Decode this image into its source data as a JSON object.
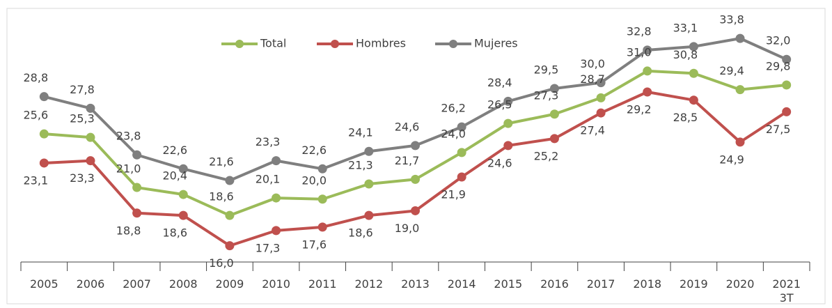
{
  "chart_data": {
    "type": "line",
    "categories": [
      "2005",
      "2006",
      "2007",
      "2008",
      "2009",
      "2010",
      "2011",
      "2012",
      "2013",
      "2014",
      "2015",
      "2016",
      "2017",
      "2018",
      "2019",
      "2020",
      "2021\n3T"
    ],
    "series": [
      {
        "name": "Total",
        "color": "#9bbb59",
        "values": [
          25.6,
          25.3,
          21.0,
          20.4,
          18.6,
          20.1,
          20.0,
          21.3,
          21.7,
          24.0,
          26.5,
          27.3,
          28.7,
          31.0,
          30.8,
          29.4,
          29.8
        ],
        "value_labels": [
          "25,6",
          "25,3",
          "21,0",
          "20,4",
          "18,6",
          "20,1",
          "20,0",
          "21,3",
          "21,7",
          "24,0",
          "26,5",
          "27,3",
          "28,7",
          "31,0",
          "30,8",
          "29,4",
          "29,8"
        ]
      },
      {
        "name": "Hombres",
        "color": "#c0504d",
        "values": [
          23.1,
          23.3,
          18.8,
          18.6,
          16.0,
          17.3,
          17.6,
          18.6,
          19.0,
          21.9,
          24.6,
          25.2,
          27.4,
          29.2,
          28.5,
          24.9,
          27.5
        ],
        "value_labels": [
          "23,1",
          "23,3",
          "18,8",
          "18,6",
          "16,0",
          "17,3",
          "17,6",
          "18,6",
          "19,0",
          "21,9",
          "24,6",
          "25,2",
          "27,4",
          "29,2",
          "28,5",
          "24,9",
          "27,5"
        ]
      },
      {
        "name": "Mujeres",
        "color": "#7f7f7f",
        "values": [
          28.8,
          27.8,
          23.8,
          22.6,
          21.6,
          23.3,
          22.6,
          24.1,
          24.6,
          26.2,
          28.4,
          29.5,
          30.0,
          32.8,
          33.1,
          33.8,
          32.0
        ],
        "value_labels": [
          "28,8",
          "27,8",
          "23,8",
          "22,6",
          "21,6",
          "23,3",
          "22,6",
          "24,1",
          "24,6",
          "26,2",
          "28,4",
          "29,5",
          "30,0",
          "32,8",
          "33,1",
          "33,8",
          "32,0"
        ]
      }
    ],
    "ylim": [
      14.6,
      36.5
    ],
    "legend": "top"
  }
}
